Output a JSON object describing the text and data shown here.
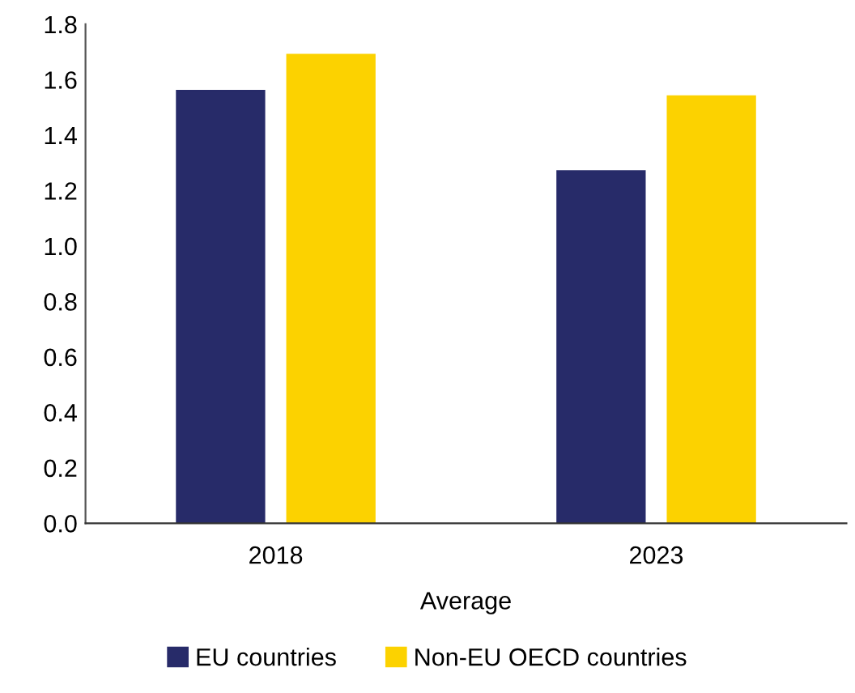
{
  "chart_data": {
    "type": "bar",
    "xlabel": "Average",
    "categories": [
      "2018",
      "2023"
    ],
    "series": [
      {
        "name": "EU countries",
        "color": "#272b69",
        "values": [
          1.56,
          1.27
        ]
      },
      {
        "name": "Non-EU OECD countries",
        "color": "#fcd200",
        "values": [
          1.69,
          1.54
        ]
      }
    ],
    "ylim": [
      0,
      1.8
    ],
    "yticks": [
      {
        "value": 0,
        "label": "0.0"
      },
      0.2,
      0.4,
      0.6,
      0.8,
      {
        "value": 1,
        "label": "1.0"
      },
      1.2,
      1.4,
      1.6,
      1.8
    ],
    "grid": false,
    "legend": "bottom"
  }
}
